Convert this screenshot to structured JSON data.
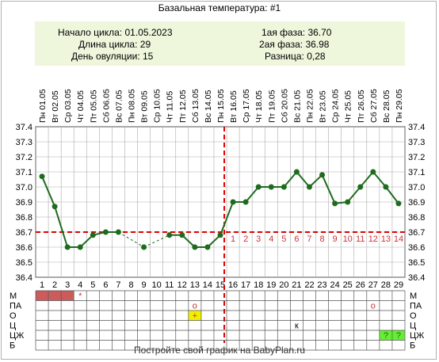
{
  "title": "Базальная температура: #1",
  "info": {
    "cycle_start_label": "Начало цикла:",
    "cycle_start": "01.05.2023",
    "cycle_length_label": "Длина цикла:",
    "cycle_length": "29",
    "ovulation_day_label": "День овуляции:",
    "ovulation_day": "15",
    "phase1_label": "1ая фаза:",
    "phase1": "36.70",
    "phase2_label": "2ая фаза:",
    "phase2": "36.98",
    "difference_label": "Разница:",
    "difference": "0,28"
  },
  "footer": "Постройте свой график на BabyPlan.ru",
  "colors": {
    "line": "#1e6b1e",
    "dot": "#1e6b1e",
    "coverline": "#dd0000",
    "grid": "#aaaaaa",
    "phase2_day_numbers": "#cc3333",
    "menses": "#cc5c5c",
    "highlight_yellow": "#f0f000",
    "highlight_green": "#66ee33"
  },
  "chart_data": {
    "type": "line",
    "days": [
      1,
      2,
      3,
      4,
      5,
      6,
      7,
      8,
      9,
      10,
      11,
      12,
      13,
      14,
      15,
      16,
      17,
      18,
      19,
      20,
      21,
      22,
      23,
      24,
      25,
      26,
      27,
      28,
      29
    ],
    "dates": [
      "01.05",
      "02.05",
      "03.05",
      "04.05",
      "05.05",
      "06.05",
      "07.05",
      "08.05",
      "09.05",
      "10.05",
      "11.05",
      "12.05",
      "13.05",
      "14.05",
      "15.05",
      "16.05",
      "17.05",
      "18.05",
      "19.05",
      "20.05",
      "21.05",
      "22.05",
      "23.05",
      "24.05",
      "25.05",
      "26.05",
      "27.05",
      "28.05",
      "29.05"
    ],
    "weekdays": [
      "Пн",
      "Вт",
      "Ср",
      "Чт",
      "Пт",
      "Сб",
      "Вс",
      "Пн",
      "Вт",
      "Ср",
      "Чт",
      "Пт",
      "Сб",
      "Вс",
      "Пн",
      "Вт",
      "Ср",
      "Чт",
      "Пт",
      "Сб",
      "Вс",
      "Пн",
      "Вт",
      "Ср",
      "Чт",
      "Пт",
      "Сб",
      "Вс",
      "Пн"
    ],
    "temperatures": [
      37.07,
      36.87,
      36.6,
      36.6,
      36.68,
      36.7,
      36.7,
      null,
      36.6,
      null,
      36.68,
      36.68,
      36.6,
      36.6,
      36.68,
      36.9,
      36.9,
      37.0,
      37.0,
      37.0,
      37.1,
      37.0,
      37.08,
      36.89,
      36.9,
      37.0,
      37.1,
      37.0,
      36.89
    ],
    "y_ticks": [
      "37.4",
      "37.3",
      "37.2",
      "37.1",
      "37.0",
      "36.9",
      "36.8",
      "36.7",
      "36.6",
      "36.5",
      "36.4"
    ],
    "ylim": [
      36.4,
      37.4
    ],
    "coverline": 36.7,
    "ovulation_day": 15,
    "phase2_day_numbers": [
      "1",
      "2",
      "3",
      "4",
      "5",
      "6",
      "7",
      "8",
      "9",
      "10",
      "11",
      "12",
      "13",
      "14"
    ],
    "grid": true
  },
  "rows": [
    {
      "label": "М",
      "cells": [
        {
          "day": 1,
          "fill": "menses"
        },
        {
          "day": 2,
          "fill": "menses"
        },
        {
          "day": 3,
          "fill": "menses"
        },
        {
          "day": 4,
          "mark": "*"
        }
      ]
    },
    {
      "label": "ПА",
      "cells": [
        {
          "day": 13,
          "mark": "о"
        },
        {
          "day": 27,
          "mark": "о"
        }
      ]
    },
    {
      "label": "О",
      "cells": [
        {
          "day": 13,
          "mark": "+",
          "fill": "highlight_yellow"
        }
      ]
    },
    {
      "label": "Ц",
      "cells": [
        {
          "day": 21,
          "mark": "к"
        }
      ]
    },
    {
      "label": "ЦЖ",
      "cells": [
        {
          "day": 28,
          "mark": "?",
          "fill": "highlight_green"
        },
        {
          "day": 29,
          "mark": "?",
          "fill": "highlight_green"
        }
      ]
    },
    {
      "label": "Б",
      "cells": []
    }
  ]
}
